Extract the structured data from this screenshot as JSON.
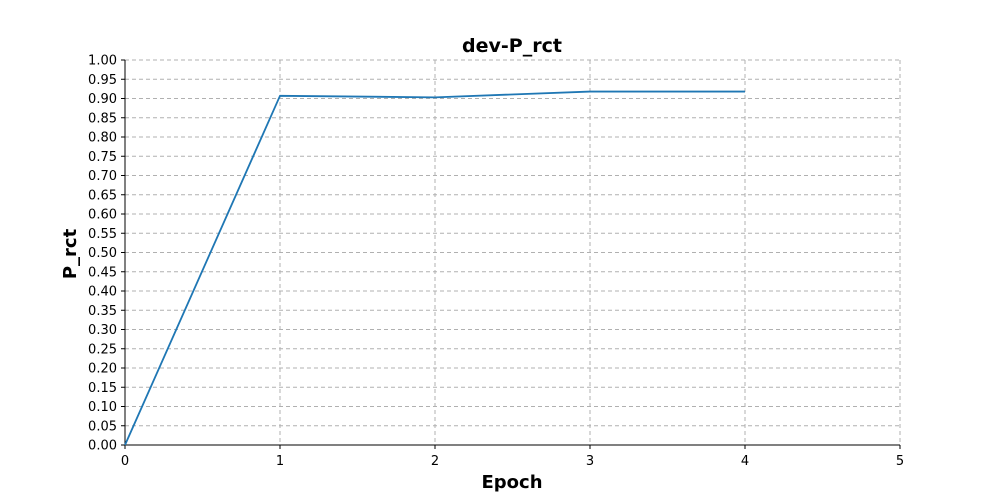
{
  "chart_data": {
    "type": "line",
    "title": "dev-P_rct",
    "xlabel": "Epoch",
    "ylabel": "P_rct",
    "xlim": [
      0,
      5
    ],
    "ylim": [
      0,
      1
    ],
    "xticks": [
      0,
      1,
      2,
      3,
      4,
      5
    ],
    "yticks": [
      0.0,
      0.05,
      0.1,
      0.15,
      0.2,
      0.25,
      0.3,
      0.35,
      0.4,
      0.45,
      0.5,
      0.55,
      0.6,
      0.65,
      0.7,
      0.75,
      0.8,
      0.85,
      0.9,
      0.95,
      1.0
    ],
    "ytick_labels": [
      "0.00",
      "0.05",
      "0.10",
      "0.15",
      "0.20",
      "0.25",
      "0.30",
      "0.35",
      "0.40",
      "0.45",
      "0.50",
      "0.55",
      "0.60",
      "0.65",
      "0.70",
      "0.75",
      "0.80",
      "0.85",
      "0.90",
      "0.95",
      "1.00"
    ],
    "xtick_labels": [
      "0",
      "1",
      "2",
      "3",
      "4",
      "5"
    ],
    "grid": true,
    "series": [
      {
        "x": [
          0,
          1,
          2,
          3,
          4
        ],
        "values": [
          0.0,
          0.907,
          0.903,
          0.918,
          0.918
        ],
        "color": "#1f77b4"
      }
    ]
  }
}
